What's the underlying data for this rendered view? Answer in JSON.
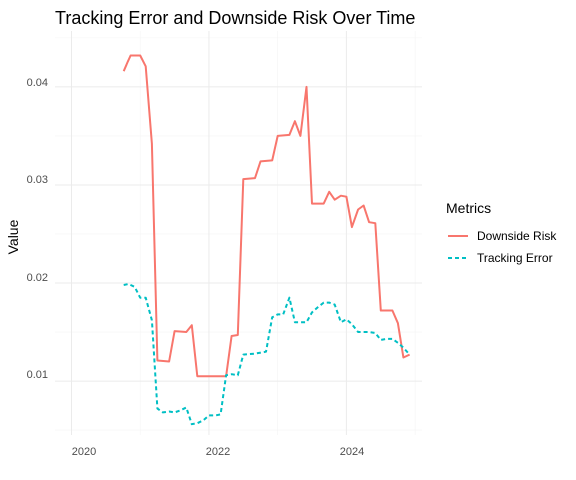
{
  "chart_data": {
    "type": "line",
    "title": "Tracking Error and Downside Risk Over Time",
    "xlabel": "",
    "ylabel": "Value",
    "xlim": [
      2019.76,
      2025.1
    ],
    "ylim": [
      0.0045,
      0.0457
    ],
    "x_ticks": [
      2020,
      2022,
      2024
    ],
    "x_tick_labels": [
      "2020",
      "2022",
      "2024"
    ],
    "y_ticks": [
      0.01,
      0.02,
      0.03,
      0.04
    ],
    "y_tick_labels": [
      "0.01",
      "0.02",
      "0.03",
      "0.04"
    ],
    "grid": true,
    "legend": {
      "title": "Metrics",
      "position": "right"
    },
    "series": [
      {
        "name": "Downside Risk",
        "color": "#F8766D",
        "line_style": "solid",
        "points": [
          [
            2020.76,
            0.0416
          ],
          [
            2020.82,
            0.0426
          ],
          [
            2020.86,
            0.0432
          ],
          [
            2020.94,
            0.0432
          ],
          [
            2021.0,
            0.0432
          ],
          [
            2021.08,
            0.0421
          ],
          [
            2021.17,
            0.0342
          ],
          [
            2021.25,
            0.0121
          ],
          [
            2021.42,
            0.012
          ],
          [
            2021.5,
            0.0151
          ],
          [
            2021.67,
            0.015
          ],
          [
            2021.75,
            0.0157
          ],
          [
            2021.83,
            0.0105
          ],
          [
            2022.25,
            0.0105
          ],
          [
            2022.33,
            0.0146
          ],
          [
            2022.42,
            0.0147
          ],
          [
            2022.5,
            0.0306
          ],
          [
            2022.67,
            0.0307
          ],
          [
            2022.75,
            0.0324
          ],
          [
            2022.92,
            0.0325
          ],
          [
            2023.0,
            0.035
          ],
          [
            2023.17,
            0.0351
          ],
          [
            2023.25,
            0.0365
          ],
          [
            2023.33,
            0.035
          ],
          [
            2023.42,
            0.04
          ],
          [
            2023.5,
            0.0281
          ],
          [
            2023.67,
            0.0281
          ],
          [
            2023.75,
            0.0293
          ],
          [
            2023.83,
            0.0285
          ],
          [
            2023.92,
            0.0289
          ],
          [
            2024.0,
            0.0288
          ],
          [
            2024.08,
            0.0257
          ],
          [
            2024.17,
            0.0275
          ],
          [
            2024.25,
            0.0279
          ],
          [
            2024.33,
            0.0262
          ],
          [
            2024.42,
            0.0261
          ],
          [
            2024.5,
            0.0172
          ],
          [
            2024.67,
            0.0172
          ],
          [
            2024.75,
            0.0159
          ],
          [
            2024.83,
            0.0124
          ],
          [
            2024.92,
            0.0127
          ]
        ]
      },
      {
        "name": "Tracking Error",
        "color": "#00BFC4",
        "line_style": "dashed",
        "points": [
          [
            2020.76,
            0.0198
          ],
          [
            2020.83,
            0.0199
          ],
          [
            2020.92,
            0.0196
          ],
          [
            2021.0,
            0.0185
          ],
          [
            2021.08,
            0.0185
          ],
          [
            2021.17,
            0.0162
          ],
          [
            2021.25,
            0.0072
          ],
          [
            2021.33,
            0.0068
          ],
          [
            2021.42,
            0.0069
          ],
          [
            2021.5,
            0.0068
          ],
          [
            2021.58,
            0.007
          ],
          [
            2021.67,
            0.0073
          ],
          [
            2021.75,
            0.0056
          ],
          [
            2021.83,
            0.0057
          ],
          [
            2021.92,
            0.006
          ],
          [
            2022.0,
            0.0065
          ],
          [
            2022.1,
            0.0065
          ],
          [
            2022.17,
            0.0066
          ],
          [
            2022.25,
            0.0106
          ],
          [
            2022.33,
            0.0107
          ],
          [
            2022.42,
            0.0106
          ],
          [
            2022.5,
            0.0127
          ],
          [
            2022.67,
            0.0128
          ],
          [
            2022.83,
            0.013
          ],
          [
            2022.92,
            0.0165
          ],
          [
            2023.0,
            0.0168
          ],
          [
            2023.08,
            0.0168
          ],
          [
            2023.17,
            0.0185
          ],
          [
            2023.25,
            0.016
          ],
          [
            2023.33,
            0.016
          ],
          [
            2023.42,
            0.016
          ],
          [
            2023.5,
            0.017
          ],
          [
            2023.58,
            0.0175
          ],
          [
            2023.67,
            0.018
          ],
          [
            2023.75,
            0.018
          ],
          [
            2023.83,
            0.0178
          ],
          [
            2023.92,
            0.016
          ],
          [
            2024.0,
            0.0163
          ],
          [
            2024.08,
            0.0158
          ],
          [
            2024.17,
            0.015
          ],
          [
            2024.25,
            0.015
          ],
          [
            2024.33,
            0.015
          ],
          [
            2024.42,
            0.0149
          ],
          [
            2024.5,
            0.0142
          ],
          [
            2024.58,
            0.0143
          ],
          [
            2024.67,
            0.0143
          ],
          [
            2024.75,
            0.0139
          ],
          [
            2024.83,
            0.0134
          ],
          [
            2024.92,
            0.0127
          ]
        ]
      }
    ]
  }
}
